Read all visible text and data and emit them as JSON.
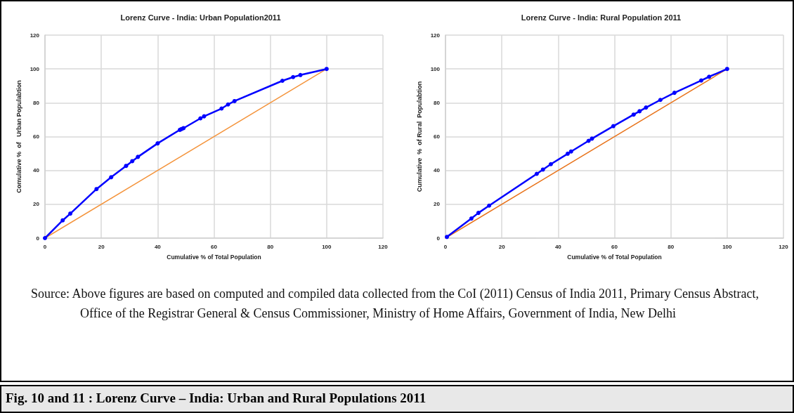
{
  "chart_data": [
    {
      "type": "line",
      "title": "Lorenz Curve - India: Urban Population2011",
      "xlabel": "Cumulative % of Total Population",
      "ylabel": "Comulative %  of   Urban Populabtion",
      "xlim": [
        0,
        120
      ],
      "xticks": [
        0,
        20,
        40,
        60,
        80,
        100,
        120
      ],
      "ylim": [
        0,
        120
      ],
      "yticks": [
        0,
        20,
        40,
        60,
        80,
        100,
        120
      ],
      "grid": true,
      "marker": "circle",
      "series": [
        {
          "color": "#0000ff",
          "x": [
            0,
            6.3,
            9,
            18.3,
            23.5,
            28.8,
            31,
            33,
            40,
            47.9,
            48.5,
            49.2,
            55.2,
            56.5,
            62.7,
            65,
            67.3,
            84.3,
            88.1,
            90.7,
            100
          ],
          "values": [
            0,
            10.5,
            14.5,
            29,
            36,
            42.7,
            45.5,
            48,
            56,
            64,
            64.5,
            65,
            70.8,
            72,
            76.6,
            79,
            81,
            93,
            95.2,
            96.4,
            100
          ]
        },
        {
          "color": "#f4943c",
          "marker": "none",
          "x": [
            0,
            100
          ],
          "values": [
            0,
            100
          ]
        }
      ],
      "annotations": [
        "Source: Above figures are based on computed and compiled data collected from the CoI (2011) Census of India 2011, Primary Census Abstract, Office of the Registrar General & Census Commissioner, Ministry of Home Affairs, Government of India, New Delhi",
        "Fig. 10 and 11 : Lorenz Curve – India: Urban and Rural Populations 2011"
      ]
    },
    {
      "type": "line",
      "title": "Lorenz Curve - India: Rural Population 2011",
      "xlabel": "Cumulative % of Total Population",
      "ylabel": "Cumulative  %  of Rural  Populabtion",
      "xlim": [
        0,
        120
      ],
      "xticks": [
        0,
        20,
        40,
        60,
        80,
        100,
        120
      ],
      "ylim": [
        0,
        120
      ],
      "yticks": [
        0,
        20,
        40,
        60,
        80,
        100,
        120
      ],
      "grid": true,
      "marker": "circle",
      "series": [
        {
          "color": "#0000ff",
          "x": [
            0.5,
            9.2,
            11.7,
            15.5,
            32.4,
            34.6,
            37.4,
            43.4,
            44.6,
            50.8,
            52,
            59.6,
            66.8,
            68.9,
            71.2,
            76.3,
            81.3,
            90.8,
            93.6,
            100
          ],
          "values": [
            0.7,
            11.6,
            14.9,
            19.2,
            38,
            40.5,
            43.7,
            49.9,
            51.2,
            57.5,
            58.8,
            66.2,
            73,
            75,
            77.2,
            81.7,
            85.9,
            93.2,
            95.4,
            100
          ]
        },
        {
          "color": "#e8741c",
          "marker": "none",
          "x": [
            0,
            100
          ],
          "values": [
            0,
            100
          ]
        }
      ]
    }
  ]
}
